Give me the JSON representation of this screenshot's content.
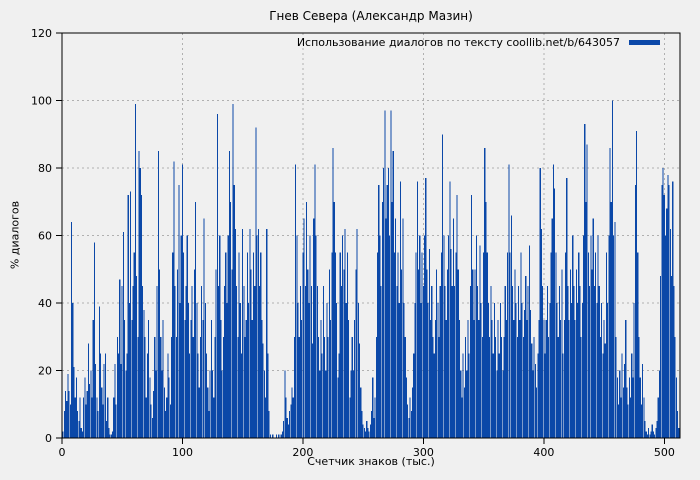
{
  "chart_data": {
    "type": "bar",
    "title": "Гнев Севера (Александр Мазин)",
    "legend": "Использование диалогов по тексту coollib.net/b/643057",
    "xlabel": "Счетчик знаков (тыс.)",
    "ylabel": "% диалогов",
    "xlim": [
      0,
      513
    ],
    "ylim": [
      0,
      120
    ],
    "x_ticks": [
      0,
      100,
      200,
      300,
      400,
      500
    ],
    "y_ticks": [
      0,
      20,
      40,
      60,
      80,
      100,
      120
    ],
    "grid": true,
    "legend_position": "top-right-inside",
    "bar_color": "#0b48a8",
    "background_color": "#f0f0f0",
    "x_start": 1,
    "x_step": 1,
    "x_units": "thousands of characters",
    "y_units": "percent of dialogs",
    "values": [
      2,
      8,
      14,
      11,
      19,
      14,
      10,
      64,
      40,
      21,
      12,
      18,
      8,
      5,
      12,
      3,
      2,
      12,
      18,
      10,
      14,
      28,
      16,
      20,
      12,
      35,
      58,
      22,
      12,
      8,
      39,
      25,
      15,
      10,
      22,
      25,
      5,
      12,
      3,
      1,
      1,
      2,
      12,
      22,
      10,
      30,
      25,
      47,
      22,
      45,
      61,
      35,
      20,
      25,
      72,
      40,
      73,
      35,
      45,
      55,
      99,
      48,
      30,
      85,
      80,
      72,
      45,
      38,
      30,
      12,
      25,
      35,
      18,
      10,
      6,
      14,
      30,
      20,
      45,
      85,
      50,
      30,
      20,
      35,
      15,
      8,
      12,
      25,
      18,
      10,
      30,
      55,
      82,
      45,
      30,
      50,
      75,
      40,
      60,
      81,
      55,
      35,
      45,
      60,
      40,
      25,
      35,
      45,
      30,
      50,
      70,
      40,
      25,
      15,
      30,
      45,
      35,
      65,
      40,
      25,
      15,
      8,
      20,
      35,
      20,
      12,
      30,
      50,
      96,
      45,
      60,
      35,
      20,
      30,
      45,
      55,
      40,
      60,
      85,
      70,
      50,
      99,
      75,
      62,
      45,
      30,
      55,
      40,
      25,
      62,
      45,
      30,
      35,
      55,
      40,
      62,
      50,
      35,
      55,
      45,
      92,
      60,
      62,
      45,
      55,
      35,
      28,
      20,
      12,
      62,
      25,
      8,
      1,
      0,
      1,
      0,
      0,
      1,
      0,
      1,
      0,
      1,
      2,
      5,
      20,
      12,
      6,
      4,
      8,
      10,
      15,
      12,
      30,
      81,
      60,
      40,
      30,
      45,
      35,
      55,
      65,
      45,
      70,
      50,
      40,
      60,
      45,
      28,
      65,
      81,
      60,
      45,
      30,
      20,
      35,
      25,
      45,
      30,
      20,
      40,
      30,
      50,
      35,
      55,
      86,
      70,
      55,
      40,
      18,
      25,
      55,
      45,
      60,
      50,
      62,
      40,
      55,
      35,
      12,
      20,
      30,
      20,
      35,
      50,
      62,
      40,
      28,
      15,
      8,
      4,
      3,
      2,
      5,
      3,
      2,
      4,
      8,
      18,
      6,
      12,
      30,
      55,
      75,
      60,
      45,
      70,
      80,
      97,
      65,
      75,
      80,
      60,
      97,
      70,
      85,
      55,
      65,
      45,
      55,
      40,
      76,
      50,
      65,
      40,
      30,
      18,
      10,
      6,
      12,
      8,
      15,
      25,
      40,
      55,
      76,
      50,
      60,
      40,
      55,
      45,
      60,
      77,
      50,
      40,
      56,
      35,
      45,
      30,
      25,
      35,
      50,
      40,
      30,
      45,
      55,
      90,
      60,
      45,
      35,
      50,
      60,
      76,
      56,
      45,
      65,
      45,
      55,
      72,
      50,
      35,
      20,
      12,
      25,
      15,
      30,
      20,
      35,
      25,
      45,
      72,
      50,
      35,
      50,
      60,
      45,
      35,
      57,
      40,
      30,
      55,
      86,
      70,
      55,
      40,
      30,
      45,
      35,
      25,
      40,
      30,
      20,
      35,
      25,
      40,
      30,
      20,
      30,
      45,
      35,
      55,
      81,
      55,
      66,
      45,
      35,
      50,
      40,
      30,
      45,
      35,
      55,
      40,
      30,
      38,
      48,
      35,
      45,
      57,
      38,
      28,
      20,
      30,
      22,
      15,
      25,
      35,
      80,
      62,
      45,
      35,
      25,
      35,
      45,
      30,
      40,
      55,
      65,
      81,
      74,
      55,
      40,
      30,
      45,
      35,
      50,
      25,
      35,
      55,
      77,
      45,
      35,
      50,
      40,
      60,
      45,
      35,
      50,
      40,
      55,
      45,
      30,
      40,
      60,
      93,
      70,
      87,
      55,
      45,
      60,
      50,
      65,
      45,
      55,
      40,
      60,
      45,
      30,
      40,
      25,
      35,
      28,
      55,
      40,
      60,
      86,
      70,
      100,
      60,
      64,
      30,
      18,
      10,
      20,
      12,
      25,
      15,
      22,
      35,
      15,
      10,
      18,
      12,
      25,
      18,
      40,
      75,
      91,
      55,
      30,
      18,
      10,
      22,
      12,
      5,
      2,
      1,
      3,
      1,
      2,
      4,
      2,
      1,
      3,
      5,
      12,
      20,
      48,
      75,
      80,
      72,
      60,
      68,
      78,
      75,
      62,
      48,
      76,
      45,
      30,
      18,
      8,
      3
    ]
  }
}
